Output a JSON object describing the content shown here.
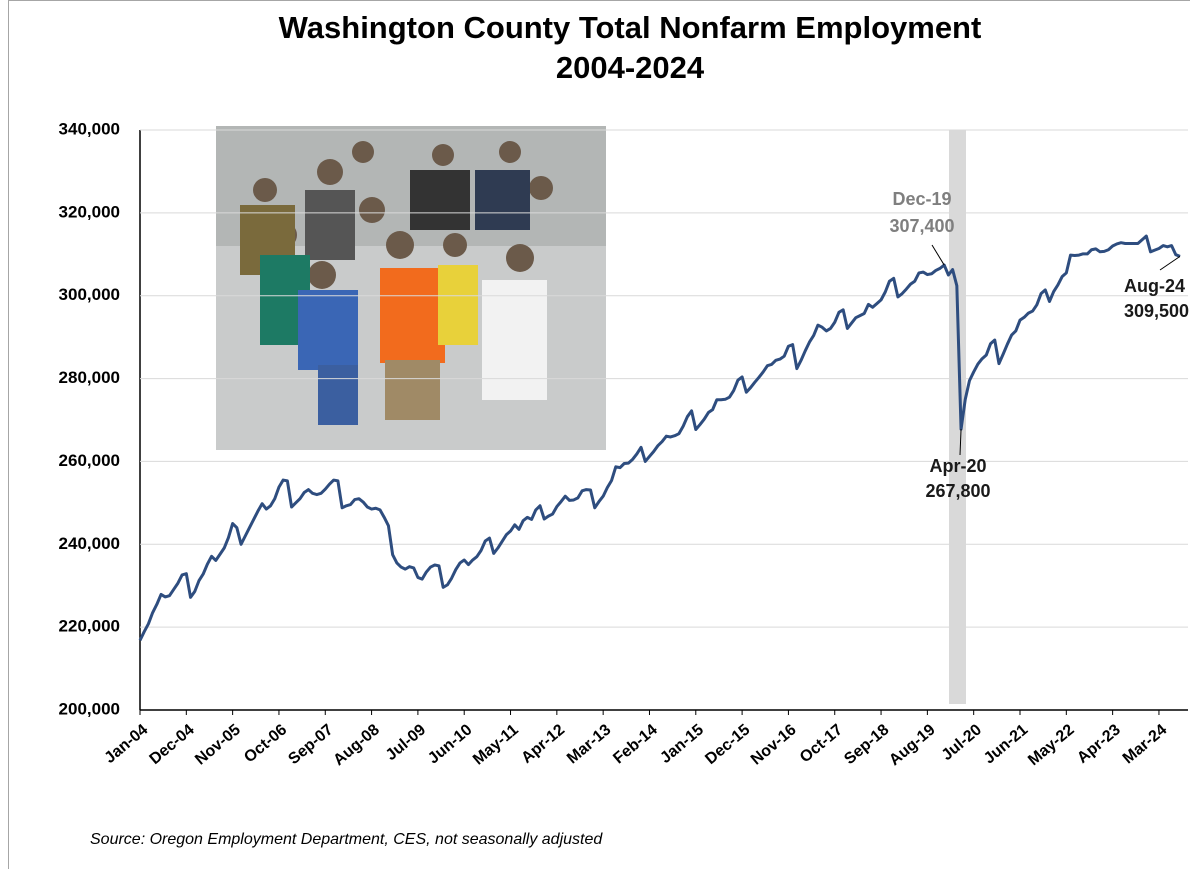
{
  "chart_data": {
    "type": "line",
    "title": "Washington County Total Nonfarm Employment",
    "subtitle": "2004-2024",
    "source": "Source: Oregon Employment Department, CES, not seasonally adjusted",
    "color": "#2e4d7f",
    "grid": true,
    "ylim": [
      200000,
      340000
    ],
    "yticks": [
      {
        "value": 200000,
        "label": "200,000"
      },
      {
        "value": 220000,
        "label": "220,000"
      },
      {
        "value": 240000,
        "label": "240,000"
      },
      {
        "value": 260000,
        "label": "260,000"
      },
      {
        "value": 280000,
        "label": "280,000"
      },
      {
        "value": 300000,
        "label": "300,000"
      },
      {
        "value": 320000,
        "label": "320,000"
      },
      {
        "value": 340000,
        "label": "340,000"
      }
    ],
    "categories": [
      "Jan-04",
      null,
      null,
      null,
      null,
      null,
      null,
      null,
      null,
      null,
      null,
      "Dec-04",
      null,
      null,
      null,
      null,
      null,
      null,
      null,
      null,
      null,
      null,
      "Nov-05",
      null,
      null,
      null,
      null,
      null,
      null,
      null,
      null,
      null,
      null,
      "Oct-06",
      null,
      null,
      null,
      null,
      null,
      null,
      null,
      null,
      null,
      null,
      "Sep-07",
      null,
      null,
      null,
      null,
      null,
      null,
      null,
      null,
      null,
      null,
      "Aug-08",
      null,
      null,
      null,
      null,
      null,
      null,
      null,
      null,
      null,
      null,
      "Jul-09",
      null,
      null,
      null,
      null,
      null,
      null,
      null,
      null,
      null,
      null,
      "Jun-10",
      null,
      null,
      null,
      null,
      null,
      null,
      null,
      null,
      null,
      null,
      "May-11",
      null,
      null,
      null,
      null,
      null,
      null,
      null,
      null,
      null,
      null,
      "Apr-12",
      null,
      null,
      null,
      null,
      null,
      null,
      null,
      null,
      null,
      null,
      "Mar-13",
      null,
      null,
      null,
      null,
      null,
      null,
      null,
      null,
      null,
      null,
      "Feb-14",
      null,
      null,
      null,
      null,
      null,
      null,
      null,
      null,
      null,
      null,
      "Jan-15",
      null,
      null,
      null,
      null,
      null,
      null,
      null,
      null,
      null,
      null,
      "Dec-15",
      null,
      null,
      null,
      null,
      null,
      null,
      null,
      null,
      null,
      null,
      "Nov-16",
      null,
      null,
      null,
      null,
      null,
      null,
      null,
      null,
      null,
      null,
      "Oct-17",
      null,
      null,
      null,
      null,
      null,
      null,
      null,
      null,
      null,
      null,
      "Sep-18",
      null,
      null,
      null,
      null,
      null,
      null,
      null,
      null,
      null,
      null,
      "Aug-19",
      null,
      null,
      null,
      null,
      null,
      null,
      null,
      null,
      null,
      null,
      "Jul-20",
      null,
      null,
      null,
      null,
      null,
      null,
      null,
      null,
      null,
      null,
      "Jun-21",
      null,
      null,
      null,
      null,
      null,
      null,
      null,
      null,
      null,
      null,
      "May-22",
      null,
      null,
      null,
      null,
      null,
      null,
      null,
      null,
      null,
      null,
      "Apr-23",
      null,
      null,
      null,
      null,
      null,
      null,
      null,
      null,
      null,
      null,
      "Mar-24",
      null,
      null,
      null,
      null,
      null
    ],
    "values": [
      216800,
      218900,
      220800,
      223500,
      225500,
      227900,
      227300,
      227600,
      229100,
      230600,
      232600,
      232900,
      227200,
      228600,
      231200,
      232800,
      235200,
      237100,
      236100,
      237600,
      239100,
      241600,
      245000,
      244000,
      240000,
      242000,
      244000,
      246000,
      248000,
      249800,
      248500,
      249300,
      251000,
      253800,
      255500,
      255300,
      249000,
      250000,
      251000,
      252500,
      253200,
      252300,
      252000,
      252300,
      253300,
      254500,
      255500,
      255300,
      248800,
      249300,
      249600,
      250800,
      251000,
      250200,
      249000,
      248500,
      248700,
      248300,
      246500,
      244500,
      237500,
      235500,
      234500,
      234000,
      234600,
      234300,
      232000,
      231600,
      233300,
      234500,
      235000,
      234800,
      229600,
      230200,
      231800,
      233900,
      235500,
      236200,
      235100,
      236200,
      237000,
      238500,
      240800,
      241500,
      237800,
      239100,
      240700,
      242300,
      243200,
      244700,
      243600,
      245700,
      246500,
      246000,
      248300,
      249300,
      246100,
      246800,
      247300,
      249100,
      250300,
      251600,
      250600,
      250700,
      251200,
      252900,
      253200,
      253100,
      248800,
      250300,
      251600,
      253700,
      255400,
      258700,
      258500,
      259500,
      259600,
      260500,
      261800,
      263400,
      260000,
      261200,
      262400,
      263800,
      264800,
      266100,
      265900,
      266200,
      266700,
      268500,
      270800,
      272200,
      267700,
      268900,
      270200,
      271800,
      272500,
      274900,
      274900,
      275000,
      275500,
      277100,
      279600,
      280400,
      276700,
      277800,
      279100,
      280300,
      281600,
      283100,
      283400,
      284400,
      284700,
      285400,
      287800,
      288200,
      282400,
      284400,
      286700,
      288800,
      290400,
      292900,
      292400,
      291500,
      292100,
      293600,
      296000,
      296600,
      292100,
      293400,
      294700,
      295200,
      295700,
      297900,
      297200,
      298100,
      299000,
      300900,
      303500,
      304200,
      299700,
      300500,
      301600,
      302800,
      303500,
      305500,
      305700,
      305100,
      305300,
      306100,
      306600,
      307400,
      305000,
      306300,
      302400,
      267800,
      275000,
      279500,
      281600,
      283500,
      284800,
      285700,
      288400,
      289300,
      283600,
      285900,
      288300,
      290500,
      291500,
      294100,
      294800,
      295800,
      296300,
      297800,
      300500,
      301400,
      298600,
      301000,
      302600,
      304600,
      305500,
      309800,
      309700,
      309800,
      310100,
      310100,
      311100,
      311300,
      310600,
      310700,
      311100,
      312000,
      312500,
      312800,
      312600,
      312600,
      312600,
      312600,
      313500,
      314400,
      310600,
      311000,
      311400,
      312100,
      311800,
      312100,
      309900,
      309500
    ],
    "annotations": [
      {
        "text": "Dec-19",
        "value": 307400,
        "label": "307,400",
        "color": "#7f7f7f"
      },
      {
        "text": "Apr-20",
        "value": 267800,
        "label": "267,800",
        "color": "#1a1a1a"
      },
      {
        "text": "Aug-24",
        "value": 309500,
        "label": "309,500",
        "color": "#1a1a1a"
      }
    ]
  }
}
